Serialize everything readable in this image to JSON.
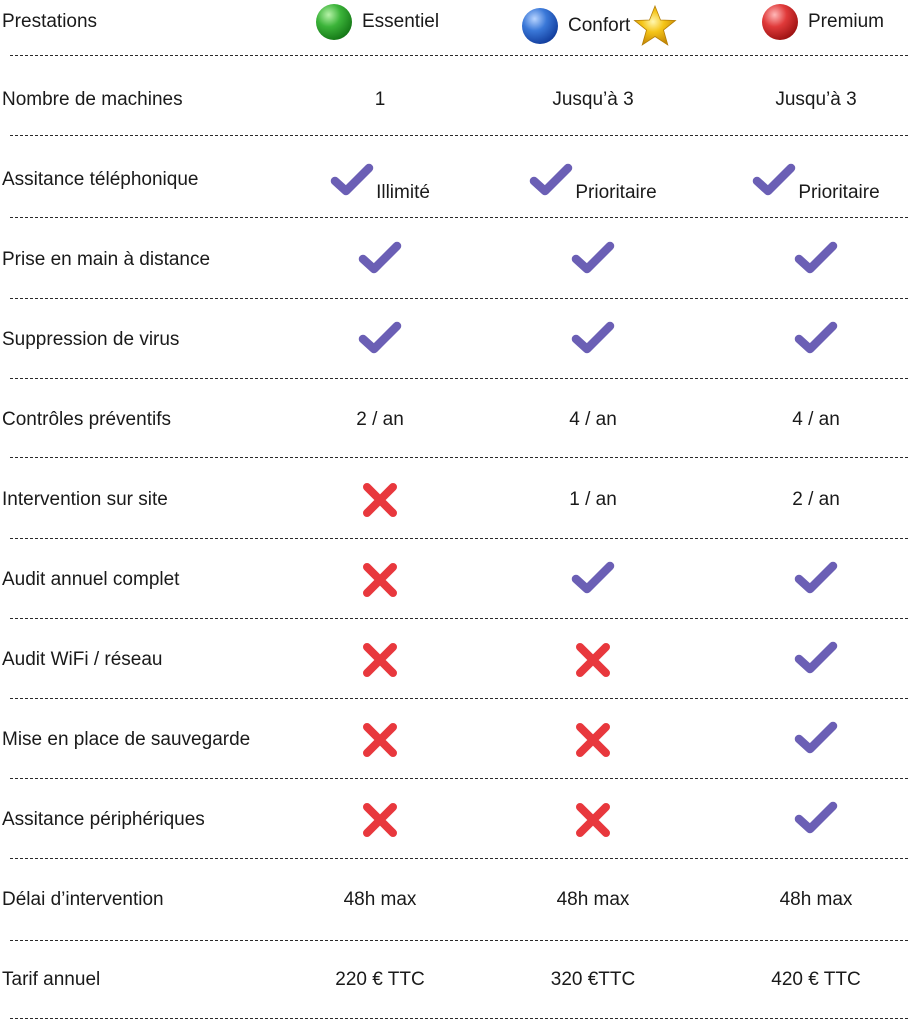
{
  "header": {
    "title": "Prestations",
    "plans": [
      {
        "name": "Essentiel",
        "ball_color": "#2fa52f"
      },
      {
        "name": "Confort",
        "ball_color": "#2a62c8",
        "highlight": "star-icon"
      },
      {
        "name": "Premium",
        "ball_color": "#d42a2a"
      }
    ]
  },
  "colors": {
    "check": "#6b5fb5",
    "cross": "#e8383d",
    "star": "#f5c518"
  },
  "rows": [
    {
      "label": "Nombre de machines",
      "cells": [
        {
          "text": "1"
        },
        {
          "text": "Jusqu’à 3"
        },
        {
          "text": "Jusqu’à 3"
        }
      ]
    },
    {
      "label": "Assitance téléphonique",
      "cells": [
        {
          "icon": "check",
          "text": "Illimité"
        },
        {
          "icon": "check",
          "text": "Prioritaire"
        },
        {
          "icon": "check",
          "text": "Prioritaire"
        }
      ]
    },
    {
      "label": "Prise en main à distance",
      "cells": [
        {
          "icon": "check"
        },
        {
          "icon": "check"
        },
        {
          "icon": "check"
        }
      ]
    },
    {
      "label": "Suppression de virus",
      "cells": [
        {
          "icon": "check"
        },
        {
          "icon": "check"
        },
        {
          "icon": "check"
        }
      ]
    },
    {
      "label": "Contrôles préventifs",
      "cells": [
        {
          "text": "2 / an"
        },
        {
          "text": "4 / an"
        },
        {
          "text": "4 / an"
        }
      ]
    },
    {
      "label": "Intervention sur site",
      "cells": [
        {
          "icon": "cross"
        },
        {
          "text": "1 / an"
        },
        {
          "text": "2 / an"
        }
      ]
    },
    {
      "label": "Audit annuel complet",
      "cells": [
        {
          "icon": "cross"
        },
        {
          "icon": "check"
        },
        {
          "icon": "check"
        }
      ]
    },
    {
      "label": "Audit WiFi / réseau",
      "cells": [
        {
          "icon": "cross"
        },
        {
          "icon": "cross"
        },
        {
          "icon": "check"
        }
      ]
    },
    {
      "label": "Mise en place de sauvegarde",
      "cells": [
        {
          "icon": "cross"
        },
        {
          "icon": "cross"
        },
        {
          "icon": "check"
        }
      ]
    },
    {
      "label": "Assitance périphériques",
      "cells": [
        {
          "icon": "cross"
        },
        {
          "icon": "cross"
        },
        {
          "icon": "check"
        }
      ]
    },
    {
      "label": "Délai d’intervention",
      "cells": [
        {
          "text": "48h max"
        },
        {
          "text": "48h max"
        },
        {
          "text": "48h max"
        }
      ]
    },
    {
      "label": "Tarif annuel",
      "cells": [
        {
          "text": "220 € TTC"
        },
        {
          "text": "320 €TTC"
        },
        {
          "text": "420 € TTC"
        }
      ]
    }
  ]
}
